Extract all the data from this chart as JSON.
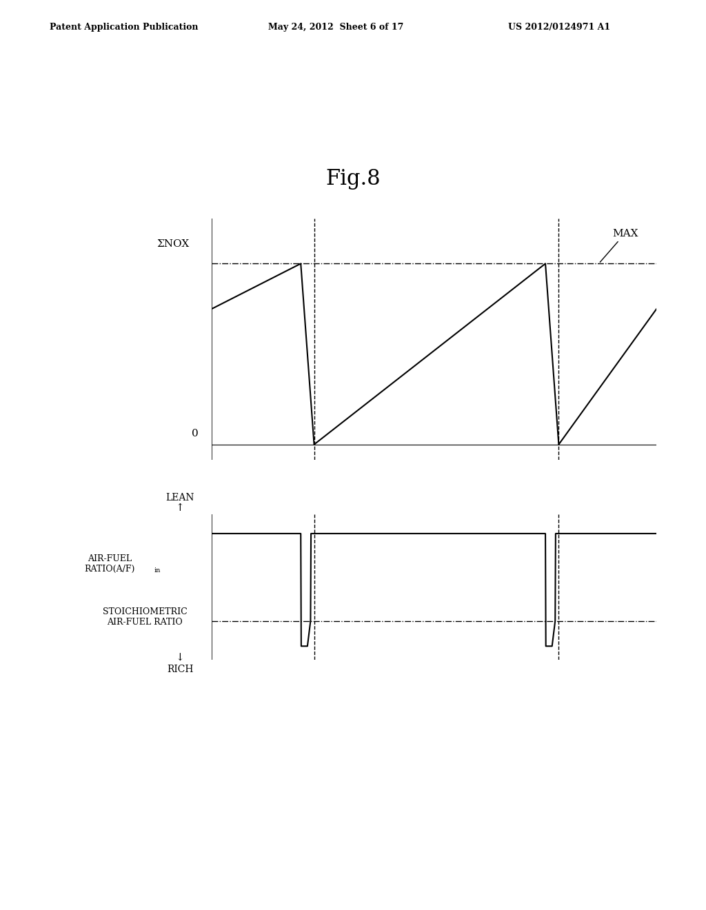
{
  "title": "Fig.8",
  "header_left": "Patent Application Publication",
  "header_center": "May 24, 2012  Sheet 6 of 17",
  "header_right": "US 2012/0124971 A1",
  "background_color": "#ffffff",
  "fig_width": 10.24,
  "fig_height": 13.2,
  "top_plot": {
    "ylabel": "ΣNOX",
    "zero_label": "0",
    "max_label": "MAX",
    "xlim": [
      0,
      10
    ],
    "ylim": [
      -0.5,
      7.5
    ],
    "max_y": 6.0,
    "nox_x": [
      0.0,
      2.0,
      2.0,
      2.3,
      2.3,
      7.5,
      7.5,
      7.8,
      7.8,
      10.0
    ],
    "nox_y": [
      4.5,
      6.0,
      6.0,
      0.0,
      0.0,
      6.0,
      6.0,
      0.0,
      0.0,
      4.5
    ],
    "dv1_x": 2.3,
    "dv2_x": 7.8,
    "zero_y": 0.0
  },
  "bottom_plot": {
    "xlim": [
      0,
      10
    ],
    "ylim": [
      -3.5,
      4.0
    ],
    "lean_y": 3.0,
    "stoich_y": -1.5,
    "spike_bottom": -2.8,
    "af_x": [
      0.0,
      2.0,
      2.01,
      2.07,
      2.15,
      2.22,
      2.23,
      7.5,
      7.51,
      7.57,
      7.65,
      7.72,
      7.73,
      10.0
    ],
    "af_y": [
      3.0,
      3.0,
      -2.8,
      -2.8,
      -2.8,
      -1.5,
      3.0,
      3.0,
      -2.8,
      -2.8,
      -2.8,
      -1.5,
      3.0,
      3.0
    ],
    "dv1_x": 2.3,
    "dv2_x": 7.8
  }
}
